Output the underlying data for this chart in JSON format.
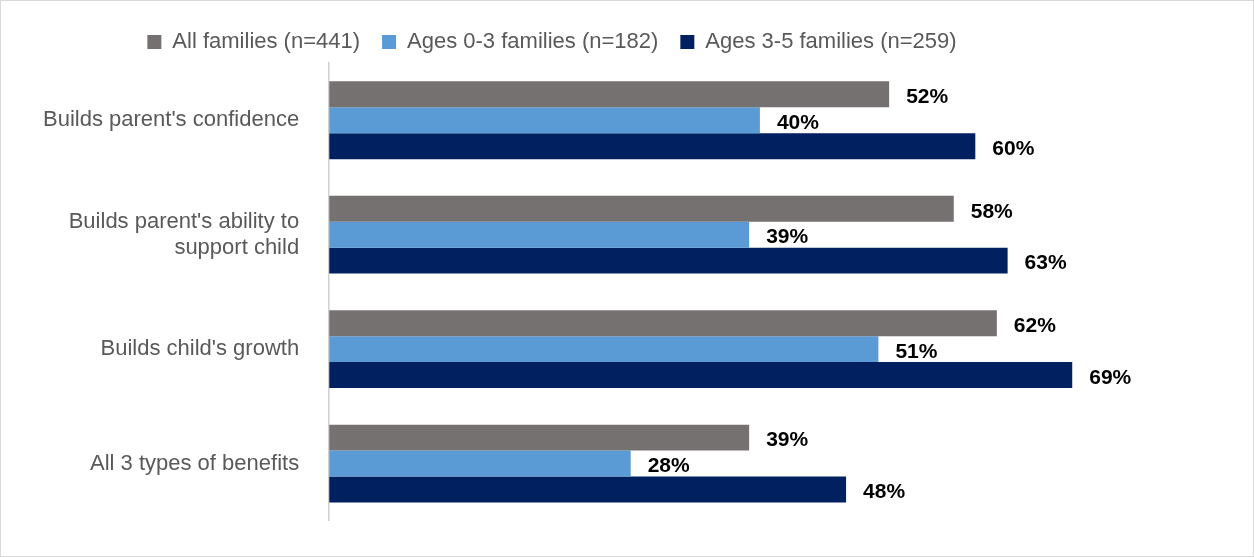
{
  "chart_data": {
    "type": "bar",
    "orientation": "horizontal",
    "categories": [
      "Builds parent's confidence",
      "Builds parent's ability to support child",
      "Builds child's growth",
      "All 3 types of benefits"
    ],
    "series": [
      {
        "name": "All families (n=441)",
        "color": "#767171",
        "values": [
          52,
          58,
          62,
          39
        ],
        "value_labels": [
          "52%",
          "58%",
          "62%",
          "39%"
        ]
      },
      {
        "name": "Ages 0-3 families (n=182)",
        "color": "#5b9bd5",
        "values": [
          40,
          39,
          51,
          28
        ],
        "value_labels": [
          "40%",
          "39%",
          "51%",
          "28%"
        ]
      },
      {
        "name": "Ages 3-5 families (n=259)",
        "color": "#002060",
        "values": [
          60,
          63,
          69,
          48
        ],
        "value_labels": [
          "60%",
          "63%",
          "69%",
          "48%"
        ]
      }
    ],
    "tick_labels": "y",
    "grid": false,
    "legend": "top"
  }
}
